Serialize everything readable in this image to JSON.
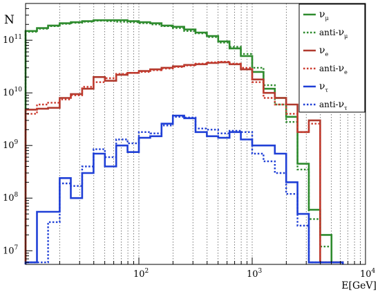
{
  "chart_data": {
    "type": "line",
    "style": "step-histogram",
    "title": "",
    "xlabel": "E[GeV]",
    "ylabel": "N",
    "xscale": "log",
    "yscale": "log",
    "xlim": [
      10,
      10000
    ],
    "ylim": [
      5500000,
      500000000000
    ],
    "grid": "vertical dotted",
    "legend_position": "top-right",
    "x_tick_labels": [
      {
        "value": 100,
        "base": "10",
        "exp": "2"
      },
      {
        "value": 1000,
        "base": "10",
        "exp": "3"
      },
      {
        "value": 10000,
        "base": "10",
        "exp": "4"
      }
    ],
    "y_tick_labels": [
      {
        "value": 10000000,
        "base": "10",
        "exp": "7"
      },
      {
        "value": 100000000,
        "base": "10",
        "exp": "8"
      },
      {
        "value": 1000000000,
        "base": "10",
        "exp": "9"
      },
      {
        "value": 10000000000,
        "base": "10",
        "exp": "10"
      },
      {
        "value": 100000000000,
        "base": "10",
        "exp": "11"
      }
    ],
    "bin_edges": [
      10,
      12.6,
      15.8,
      20,
      25.1,
      31.6,
      39.8,
      50.1,
      63.1,
      79.4,
      100,
      125.9,
      158.5,
      199.5,
      251.2,
      316.2,
      398.1,
      501.2,
      631,
      794.3,
      1000,
      1258.9,
      1584.9,
      1995.3,
      2511.9,
      3162.3,
      3981.1,
      5011.9,
      6309.6
    ],
    "series": [
      {
        "name": "ν_μ",
        "sym": "ν",
        "sub": "μ",
        "prefix": "",
        "color": "#2e8b2e",
        "dash": "solid",
        "values": [
          150000000000,
          170000000000,
          190000000000,
          210000000000,
          220000000000,
          230000000000,
          240000000000,
          240000000000,
          240000000000,
          230000000000,
          220000000000,
          210000000000,
          190000000000,
          180000000000,
          160000000000,
          140000000000,
          120000000000,
          95000000000,
          70000000000,
          50000000000,
          25000000000,
          12000000000,
          8000000000,
          3500000000,
          450000000,
          60000000,
          20000000,
          6000000
        ]
      },
      {
        "name": "anti-ν_μ",
        "sym": "ν",
        "sub": "μ",
        "prefix": "anti-",
        "color": "#2e8b2e",
        "dash": "dotted",
        "values": [
          145000000000,
          165000000000,
          185000000000,
          205000000000,
          215000000000,
          225000000000,
          235000000000,
          230000000000,
          225000000000,
          220000000000,
          210000000000,
          200000000000,
          185000000000,
          170000000000,
          150000000000,
          135000000000,
          115000000000,
          90000000000,
          75000000000,
          55000000000,
          30000000000,
          14000000000,
          6000000000,
          2800000000,
          350000000,
          40000000,
          12000000,
          6000000
        ]
      },
      {
        "name": "ν_e",
        "sym": "ν",
        "sub": "e",
        "prefix": "",
        "color": "#b03a2e",
        "dash": "solid",
        "values": [
          4800000000,
          5000000000,
          5200000000,
          8000000000,
          9500000000,
          12000000000,
          20000000000,
          17000000000,
          22000000000,
          24000000000,
          26000000000,
          28000000000,
          30000000000,
          32000000000,
          34000000000,
          35000000000,
          37000000000,
          38000000000,
          35000000000,
          28000000000,
          18000000000,
          10000000000,
          8000000000,
          6000000000,
          1800000000,
          3000000000,
          6000000,
          6000000
        ]
      },
      {
        "name": "anti-ν_e",
        "sym": "ν",
        "sub": "e",
        "prefix": "anti-",
        "color": "#cc3a2e",
        "dash": "dotted",
        "values": [
          4000000000,
          6000000000,
          6500000000,
          7500000000,
          9000000000,
          13000000000,
          16000000000,
          19000000000,
          23000000000,
          24000000000,
          25000000000,
          27000000000,
          29000000000,
          31000000000,
          33000000000,
          36000000000,
          38000000000,
          39000000000,
          36000000000,
          30000000000,
          16000000000,
          8000000000,
          6000000000,
          4000000000,
          1800000000,
          2600000000,
          6000000,
          6000000
        ]
      },
      {
        "name": "ν_τ",
        "sym": "ν",
        "sub": "τ",
        "prefix": "",
        "color": "#1f3fd6",
        "dash": "solid",
        "values": [
          6000000,
          55000000,
          55000000,
          240000000,
          100000000,
          300000000,
          700000000,
          400000000,
          1000000000,
          750000000,
          1400000000,
          1500000000,
          2600000000,
          3700000000,
          3300000000,
          1800000000,
          1500000000,
          1400000000,
          1800000000,
          1300000000,
          1000000000,
          1000000000,
          700000000,
          200000000,
          50000000,
          6000000,
          6000000,
          6000000
        ]
      },
      {
        "name": "anti-ν_τ",
        "sym": "ν",
        "sub": "τ",
        "prefix": "anti-",
        "color": "#1f3fd6",
        "dash": "dotted",
        "values": [
          6000000,
          6000000,
          35000000,
          190000000,
          170000000,
          400000000,
          850000000,
          600000000,
          1300000000,
          1100000000,
          1800000000,
          1700000000,
          2400000000,
          3500000000,
          3400000000,
          2100000000,
          2000000000,
          1700000000,
          1900000000,
          1800000000,
          700000000,
          500000000,
          300000000,
          120000000,
          30000000,
          6000000,
          6000000,
          6000000
        ]
      }
    ]
  }
}
